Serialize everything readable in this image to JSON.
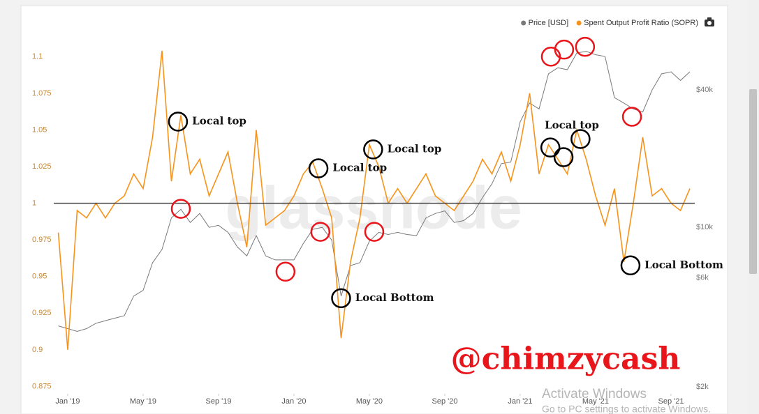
{
  "chart_data": {
    "type": "line",
    "xlim": [
      -0.74,
      33.26
    ],
    "xticks": [
      {
        "value": 0,
        "label": "Jan '19"
      },
      {
        "value": 4,
        "label": "May '19"
      },
      {
        "value": 8,
        "label": "Sep '19"
      },
      {
        "value": 12,
        "label": "Jan '20"
      },
      {
        "value": 16,
        "label": "May '20"
      },
      {
        "value": 20,
        "label": "Sep '20"
      },
      {
        "value": 24,
        "label": "Jan '21"
      },
      {
        "value": 28,
        "label": "May '21"
      },
      {
        "value": 32,
        "label": "Sep '21"
      }
    ],
    "ylim": [
      0.87,
      1.122
    ],
    "yticks": [
      0.875,
      0.9,
      0.925,
      0.95,
      0.975,
      1,
      1.025,
      1.05,
      1.075,
      1.1
    ],
    "y2lim": [
      1866,
      77400
    ],
    "y2_log_scale": true,
    "y2ticks": [
      {
        "value": 2000,
        "label": "$2k"
      },
      {
        "value": 6000,
        "label": "$6k"
      },
      {
        "value": 10000,
        "label": "$10k"
      },
      {
        "value": 40000,
        "label": "$40k"
      }
    ],
    "reference_line": 1,
    "grid": false,
    "legend_position": "top-right",
    "x": [
      -0.5,
      0,
      0.5,
      1,
      1.5,
      2,
      2.5,
      3,
      3.5,
      4,
      4.5,
      5,
      5.5,
      6,
      6.5,
      7,
      7.5,
      8,
      8.5,
      9,
      9.5,
      10,
      10.5,
      11,
      11.5,
      12,
      12.5,
      13,
      13.5,
      14,
      14.5,
      15,
      15.5,
      16,
      16.5,
      17,
      17.5,
      18,
      18.5,
      19,
      19.5,
      20,
      20.5,
      21,
      21.5,
      22,
      22.5,
      23,
      23.5,
      24,
      24.5,
      25,
      25.5,
      26,
      26.5,
      27,
      27.5,
      28,
      28.5,
      29,
      29.5,
      30,
      30.5,
      31,
      31.5,
      32,
      32.5,
      33
    ],
    "series": [
      {
        "name": "Price [USD]",
        "color": "#7a7a7a",
        "axis": "y2",
        "values": [
          3700,
          3600,
          3500,
          3600,
          3800,
          3900,
          4000,
          4100,
          5000,
          5300,
          7000,
          8000,
          11000,
          12000,
          10500,
          11500,
          10000,
          10200,
          9500,
          8200,
          7500,
          9200,
          7500,
          7200,
          7200,
          7200,
          8500,
          9800,
          10000,
          8800,
          5000,
          6800,
          7000,
          8700,
          9500,
          9300,
          9500,
          9300,
          9200,
          11000,
          11500,
          11800,
          10500,
          10700,
          11500,
          13500,
          15500,
          19000,
          19300,
          29000,
          35000,
          33000,
          47000,
          50000,
          49000,
          58000,
          59000,
          57000,
          56000,
          37000,
          35000,
          33000,
          32000,
          40000,
          47000,
          48000,
          44000,
          48000
        ]
      },
      {
        "name": "Spent Output Profit Ratio (SOPR)",
        "color": "#f7931a",
        "values": [
          0.98,
          0.9,
          0.995,
          0.99,
          1.0,
          0.99,
          1.0,
          1.005,
          1.02,
          1.01,
          1.045,
          1.104,
          1.015,
          1.06,
          1.02,
          1.03,
          1.005,
          1.02,
          1.035,
          1.0,
          0.97,
          1.05,
          0.985,
          0.99,
          0.995,
          1.005,
          1.02,
          1.028,
          1.01,
          0.99,
          0.908,
          0.96,
          0.99,
          1.04,
          1.025,
          1.0,
          1.01,
          1.0,
          1.01,
          1.02,
          1.005,
          1.0,
          0.995,
          1.005,
          1.015,
          1.03,
          1.02,
          1.035,
          1.015,
          1.04,
          1.075,
          1.02,
          1.04,
          1.03,
          1.02,
          1.05,
          1.03,
          1.005,
          0.985,
          1.01,
          0.96,
          1.0,
          1.045,
          1.005,
          1.01,
          1.0,
          0.995,
          1.01
        ]
      }
    ],
    "markers": [
      {
        "x": 5.85,
        "y": 1.0557,
        "color": "black"
      },
      {
        "x": 13.3,
        "y": 1.0238,
        "color": "black"
      },
      {
        "x": 16.2,
        "y": 1.0367,
        "color": "black"
      },
      {
        "x": 25.6,
        "y": 1.038,
        "color": "black"
      },
      {
        "x": 26.3,
        "y": 1.0314,
        "color": "black"
      },
      {
        "x": 27.2,
        "y": 1.0438,
        "color": "black"
      },
      {
        "x": 14.5,
        "y": 0.9352,
        "color": "black"
      },
      {
        "x": 29.85,
        "y": 0.9576,
        "color": "black"
      },
      {
        "x": 6.0,
        "y": 0.9962,
        "color": "red"
      },
      {
        "x": 11.55,
        "y": 0.9533,
        "color": "red"
      },
      {
        "x": 13.4,
        "y": 0.9805,
        "color": "red"
      },
      {
        "x": 16.26,
        "y": 0.9805,
        "color": "red"
      },
      {
        "x": 25.63,
        "y": 1.1,
        "color": "red"
      },
      {
        "x": 26.33,
        "y": 1.1048,
        "color": "red"
      },
      {
        "x": 27.44,
        "y": 1.1067,
        "color": "red"
      },
      {
        "x": 29.93,
        "y": 1.059,
        "color": "red"
      }
    ],
    "labels": [
      {
        "text": "Local top",
        "x": 6.6,
        "y": 1.0557
      },
      {
        "text": "Local top",
        "x": 14.05,
        "y": 1.0238
      },
      {
        "text": "Local top",
        "x": 16.95,
        "y": 1.0367
      },
      {
        "text": "Local top",
        "x": 25.3,
        "y": 1.0529
      },
      {
        "text": "Local Bottom",
        "x": 15.25,
        "y": 0.9352
      },
      {
        "text": "Local Bottom",
        "x": 30.6,
        "y": 0.9576
      }
    ]
  },
  "overlay": {
    "brand": "glassnode",
    "handle": "@chimzycash",
    "activate_title": "Activate Windows",
    "activate_sub": "Go to PC settings to activate Windows."
  }
}
